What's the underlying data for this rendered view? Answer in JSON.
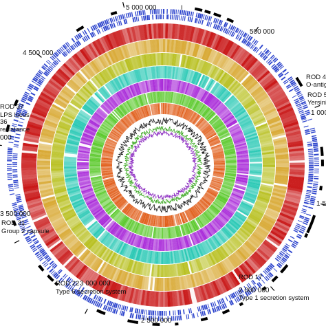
{
  "figure": {
    "position_labels": [
      {
        "text": "5 000 000",
        "pos": 5000000
      },
      {
        "text": "500 000",
        "pos": 500000
      },
      {
        "text": "1 000",
        "pos": 1000000
      },
      {
        "text": "1 50",
        "pos": 1500000
      },
      {
        "text": "2 000 000",
        "pos": 2000000
      },
      {
        "text": "2 500 000",
        "pos": 2500000
      },
      {
        "text": "3 000 000",
        "pos": 3000000
      },
      {
        "text": "3 500 000",
        "pos": 3500000
      },
      {
        "text": "000",
        "pos": 4000000
      },
      {
        "text": "4 500 000",
        "pos": 4500000
      }
    ],
    "region_labels": [
      {
        "name": "ROD 4",
        "desc": "O-antige"
      },
      {
        "name": "ROD 5",
        "desc": "Yersiniab"
      },
      {
        "name": "ROD 17",
        "desc": "Type 1 secretion system"
      },
      {
        "name": "ROD 22",
        "desc": "Type 6 secretion system"
      },
      {
        "name": "ROD 31",
        "desc": "Group 2 capsule"
      },
      {
        "name": "ROD 37",
        "desc": "LPS locus"
      },
      {
        "name": "36",
        "desc": "resistance"
      }
    ],
    "top_marker": "I",
    "genome_length": 5200000,
    "rings": [
      {
        "color": "#1a33c8",
        "role": "forward CDS"
      },
      {
        "color": "#1a33c8",
        "role": "reverse CDS"
      },
      {
        "color": "#c81414",
        "role": "comparison 1"
      },
      {
        "color": "#d8a832",
        "role": "comparison 2"
      },
      {
        "color": "#b8c020",
        "role": "comparison 3"
      },
      {
        "color": "#28c8b4",
        "role": "comparison 4"
      },
      {
        "color": "#a828d8",
        "role": "comparison 5"
      },
      {
        "color": "#58c828",
        "role": "comparison 6"
      },
      {
        "color": "#e05a14",
        "role": "comparison 7"
      },
      {
        "color": "#111111",
        "role": "GC content"
      },
      {
        "color": "#3aa820",
        "role": "GC skew positive"
      },
      {
        "color": "#8a28c0",
        "role": "GC skew negative"
      }
    ]
  }
}
